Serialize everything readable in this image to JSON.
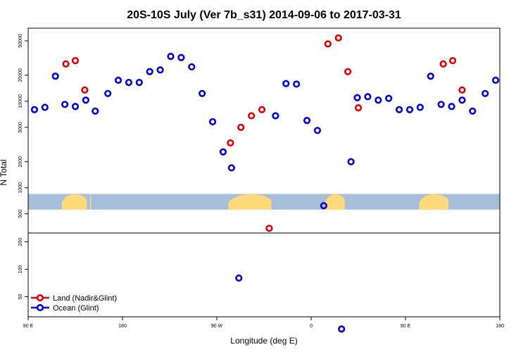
{
  "chart_data": {
    "type": "scatter",
    "title": "20S-10S July (Ver 7b_s31)   2014-09-06 to 2017-03-31",
    "xlabel": "Longitude (deg E)",
    "ylabel": "N Total",
    "y_scale": "log",
    "x_ticks": [
      {
        "value": 90,
        "label": "90 E"
      },
      {
        "value": 180,
        "label": "180"
      },
      {
        "value": 270,
        "label": "90 W"
      },
      {
        "value": 360,
        "label": "0"
      },
      {
        "value": 450,
        "label": "90 E"
      },
      {
        "value": 540,
        "label": "180"
      }
    ],
    "xlim": [
      90,
      540
    ],
    "panels": [
      {
        "name": "upper",
        "ylim": [
          300,
          70000
        ],
        "y_ticks": [
          {
            "value": 500,
            "label": "500"
          },
          {
            "value": 1000,
            "label": "1000"
          },
          {
            "value": 2000,
            "label": "2000"
          },
          {
            "value": 5000,
            "label": "5000"
          },
          {
            "value": 10000,
            "label": "10000"
          },
          {
            "value": 20000,
            "label": "20000"
          },
          {
            "value": 50000,
            "label": "50000"
          }
        ]
      },
      {
        "name": "lower",
        "ylim": [
          30,
          250
        ],
        "y_ticks": [
          {
            "value": 50,
            "label": "50"
          },
          {
            "value": 100,
            "label": "100"
          },
          {
            "value": 200,
            "label": "200"
          }
        ]
      }
    ],
    "map_strip": {
      "ocean_color": "#a7bedb",
      "land_color": "#ffd97a",
      "y_top": 850,
      "y_bottom": 560,
      "land_ranges": [
        [
          122,
          146
        ],
        [
          149,
          150
        ],
        [
          149,
          150
        ],
        [
          281,
          322
        ],
        [
          373,
          392
        ],
        [
          463,
          491
        ]
      ]
    },
    "series": [
      {
        "name": "Land (Nadir&Glint)",
        "color": "#e00000",
        "points": [
          [
            126,
            27000
          ],
          [
            135,
            29500
          ],
          [
            144,
            13500
          ],
          [
            283,
            3300
          ],
          [
            293,
            5000
          ],
          [
            303,
            6800
          ],
          [
            313,
            8000
          ],
          [
            320,
            340
          ],
          [
            376,
            46000
          ],
          [
            386,
            54000
          ],
          [
            395,
            22000
          ],
          [
            405,
            8400
          ],
          [
            486,
            27000
          ],
          [
            495,
            29500
          ],
          [
            504,
            13500
          ]
        ]
      },
      {
        "name": "Ocean (Glint)",
        "color": "#0000dd",
        "points": [
          [
            96,
            8000
          ],
          [
            106,
            8500
          ],
          [
            116,
            19500
          ],
          [
            125,
            9200
          ],
          [
            135,
            8700
          ],
          [
            145,
            10300
          ],
          [
            154,
            7700
          ],
          [
            166,
            12300
          ],
          [
            176,
            17500
          ],
          [
            186,
            16500
          ],
          [
            196,
            16500
          ],
          [
            206,
            22000
          ],
          [
            216,
            23000
          ],
          [
            226,
            33000
          ],
          [
            236,
            32000
          ],
          [
            246,
            25000
          ],
          [
            256,
            12300
          ],
          [
            266,
            5800
          ],
          [
            276,
            2600
          ],
          [
            284,
            1700
          ],
          [
            291,
            80
          ],
          [
            326,
            6800
          ],
          [
            336,
            16000
          ],
          [
            346,
            15800
          ],
          [
            356,
            6000
          ],
          [
            366,
            4600
          ],
          [
            372,
            620
          ],
          [
            389,
            22
          ],
          [
            398,
            2000
          ],
          [
            404,
            11000
          ],
          [
            414,
            11300
          ],
          [
            424,
            10300
          ],
          [
            434,
            10800
          ],
          [
            444,
            8000
          ],
          [
            454,
            8000
          ],
          [
            464,
            8500
          ],
          [
            474,
            19500
          ],
          [
            484,
            9200
          ],
          [
            494,
            8700
          ],
          [
            504,
            10300
          ],
          [
            514,
            7700
          ],
          [
            526,
            12300
          ],
          [
            536,
            17500
          ]
        ]
      }
    ],
    "legend_position": "bottom-left",
    "grid": false
  }
}
